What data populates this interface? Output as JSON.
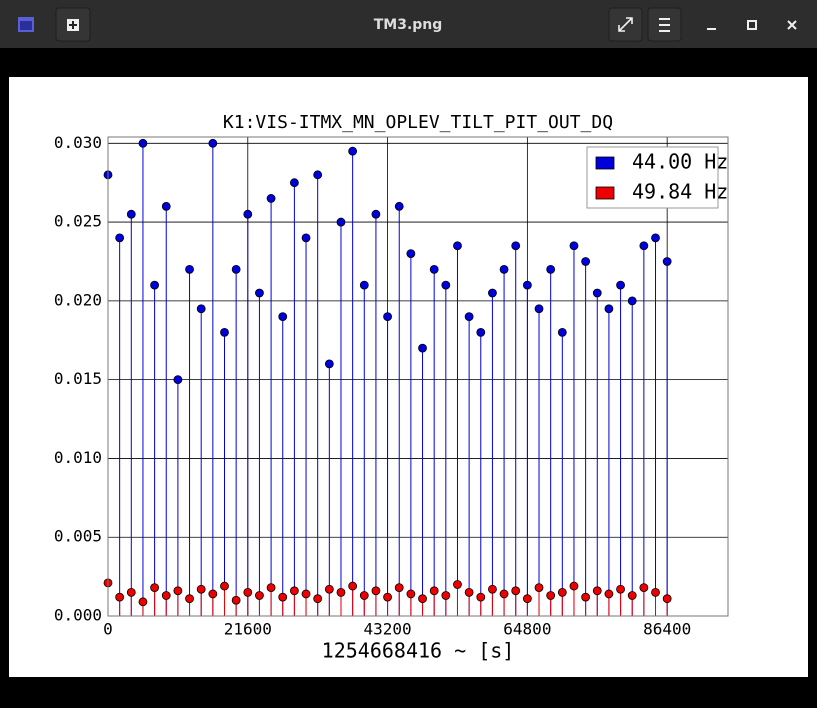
{
  "window": {
    "title": "TM3.png"
  },
  "chart_data": {
    "type": "stem",
    "title": "K1:VIS-ITMX_MN_OPLEV_TILT_PIT_OUT_DQ",
    "xlabel": "1254668416 ~ [s]",
    "x": [
      0,
      1800,
      3600,
      5400,
      7200,
      9000,
      10800,
      12600,
      14400,
      16200,
      18000,
      19800,
      21600,
      23400,
      25200,
      27000,
      28800,
      30600,
      32400,
      34200,
      36000,
      37800,
      39600,
      41400,
      43200,
      45000,
      46800,
      48600,
      50400,
      52200,
      54000,
      55800,
      57600,
      59400,
      61200,
      63000,
      64800,
      66600,
      68400,
      70200,
      72000,
      73800,
      75600,
      77400,
      79200,
      81000,
      82800,
      84600,
      86400
    ],
    "series": [
      {
        "name": "44.00 Hz",
        "color": "#0000dd",
        "values": [
          0.028,
          0.024,
          0.0255,
          0.03,
          0.021,
          0.026,
          0.015,
          0.022,
          0.0195,
          0.03,
          0.018,
          0.022,
          0.0255,
          0.0205,
          0.0265,
          0.019,
          0.0275,
          0.024,
          0.028,
          0.016,
          0.025,
          0.0295,
          0.021,
          0.0255,
          0.019,
          0.026,
          0.023,
          0.017,
          0.022,
          0.021,
          0.0235,
          0.019,
          0.018,
          0.0205,
          0.022,
          0.0235,
          0.021,
          0.0195,
          0.022,
          0.018,
          0.0235,
          0.0225,
          0.0205,
          0.0195,
          0.021,
          0.02,
          0.0235,
          0.024,
          0.0225
        ]
      },
      {
        "name": "49.84 Hz",
        "color": "#ee0000",
        "values": [
          0.0021,
          0.0012,
          0.0015,
          0.0009,
          0.0018,
          0.0013,
          0.0016,
          0.0011,
          0.0017,
          0.0014,
          0.0019,
          0.001,
          0.0015,
          0.0013,
          0.0018,
          0.0012,
          0.0016,
          0.0014,
          0.0011,
          0.0017,
          0.0015,
          0.0019,
          0.0013,
          0.0016,
          0.0012,
          0.0018,
          0.0014,
          0.0011,
          0.0016,
          0.0013,
          0.002,
          0.0015,
          0.0012,
          0.0017,
          0.0014,
          0.0016,
          0.0011,
          0.0018,
          0.0013,
          0.0015,
          0.0019,
          0.0012,
          0.0016,
          0.0014,
          0.0017,
          0.0013,
          0.0018,
          0.0015,
          0.0011
        ]
      }
    ],
    "xlim": [
      0,
      95800
    ],
    "ylim": [
      0,
      0.0304
    ],
    "xticks": [
      0,
      21600,
      43200,
      64800,
      86400
    ],
    "yticks": [
      {
        "value": 0,
        "label": "0.000"
      },
      {
        "value": 0.005,
        "label": "0.005"
      },
      {
        "value": 0.01,
        "label": "0.010"
      },
      {
        "value": 0.015,
        "label": "0.015"
      },
      {
        "value": 0.02,
        "label": "0.020"
      },
      {
        "value": 0.025,
        "label": "0.025"
      },
      {
        "value": 0.03,
        "label": "0.030"
      }
    ],
    "grid": true,
    "legend": "upper right"
  }
}
